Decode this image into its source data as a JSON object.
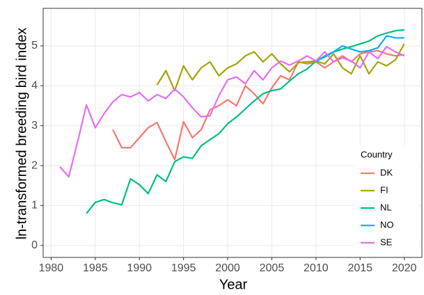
{
  "chart_data": {
    "type": "line",
    "x_label": "Year",
    "y_label": "ln-transformed breeding bird index",
    "legend_title": "Country",
    "legend_position": "bottom-right",
    "grid": true,
    "x": [
      1981,
      1982,
      1983,
      1984,
      1985,
      1986,
      1987,
      1988,
      1989,
      1990,
      1991,
      1992,
      1993,
      1994,
      1995,
      1996,
      1997,
      1998,
      1999,
      2000,
      2001,
      2002,
      2003,
      2004,
      2005,
      2006,
      2007,
      2008,
      2009,
      2010,
      2011,
      2012,
      2013,
      2014,
      2015,
      2016,
      2017,
      2018,
      2019,
      2020
    ],
    "xlim": [
      1979.1,
      2022.0
    ],
    "ylim": [
      -0.3,
      5.94
    ],
    "xticks": [
      1980,
      1985,
      1990,
      1995,
      2000,
      2005,
      2010,
      2015,
      2020
    ],
    "yticks": [
      0,
      1,
      2,
      3,
      4,
      5
    ],
    "series": [
      {
        "name": "DK",
        "color": "#F8766D",
        "values": [
          null,
          null,
          null,
          null,
          null,
          null,
          2.9,
          2.45,
          2.45,
          2.7,
          2.95,
          3.08,
          2.6,
          2.15,
          3.1,
          2.7,
          2.9,
          3.4,
          3.5,
          3.65,
          3.5,
          4.0,
          3.8,
          3.55,
          3.95,
          4.25,
          4.15,
          4.6,
          4.55,
          4.6,
          4.45,
          4.6,
          4.75,
          4.6,
          4.8,
          4.85,
          4.88,
          4.8,
          4.75,
          4.78
        ]
      },
      {
        "name": "FI",
        "color": "#A3A500",
        "values": [
          null,
          null,
          null,
          null,
          null,
          null,
          null,
          null,
          null,
          null,
          null,
          4.02,
          4.38,
          3.88,
          4.5,
          4.15,
          4.45,
          4.6,
          4.25,
          4.45,
          4.55,
          4.75,
          4.85,
          4.6,
          4.8,
          4.55,
          4.35,
          4.58,
          4.6,
          4.62,
          4.55,
          4.8,
          4.45,
          4.3,
          4.75,
          4.3,
          4.6,
          4.5,
          4.65,
          5.05
        ]
      },
      {
        "name": "NL",
        "color": "#00BF7D",
        "values": [
          null,
          null,
          null,
          0.8,
          1.08,
          1.15,
          1.07,
          1.02,
          1.67,
          1.52,
          1.3,
          1.77,
          1.6,
          2.1,
          2.22,
          2.18,
          2.5,
          2.65,
          2.8,
          3.05,
          3.22,
          3.42,
          3.62,
          3.8,
          3.88,
          3.92,
          4.12,
          4.3,
          4.42,
          4.62,
          4.72,
          4.85,
          4.92,
          4.98,
          5.05,
          5.12,
          5.25,
          5.32,
          5.38,
          5.4
        ]
      },
      {
        "name": "NO",
        "color": "#00B0F6",
        "values": [
          null,
          null,
          null,
          null,
          null,
          null,
          null,
          null,
          null,
          null,
          null,
          null,
          null,
          null,
          null,
          null,
          null,
          null,
          null,
          null,
          null,
          null,
          null,
          null,
          null,
          null,
          null,
          null,
          null,
          4.6,
          4.75,
          4.85,
          5.0,
          4.92,
          4.85,
          4.88,
          4.95,
          5.25,
          5.2,
          5.2
        ]
      },
      {
        "name": "SE",
        "color": "#E76BF3",
        "values": [
          1.97,
          1.72,
          2.6,
          3.52,
          2.95,
          3.3,
          3.6,
          3.78,
          3.72,
          3.83,
          3.62,
          3.78,
          3.68,
          3.92,
          3.72,
          3.45,
          3.22,
          3.25,
          3.75,
          4.15,
          4.22,
          4.05,
          4.38,
          4.15,
          4.45,
          4.62,
          4.52,
          4.62,
          4.75,
          4.62,
          4.85,
          4.6,
          4.7,
          4.62,
          4.45,
          4.85,
          4.68,
          4.98,
          4.85,
          4.75
        ]
      }
    ]
  }
}
